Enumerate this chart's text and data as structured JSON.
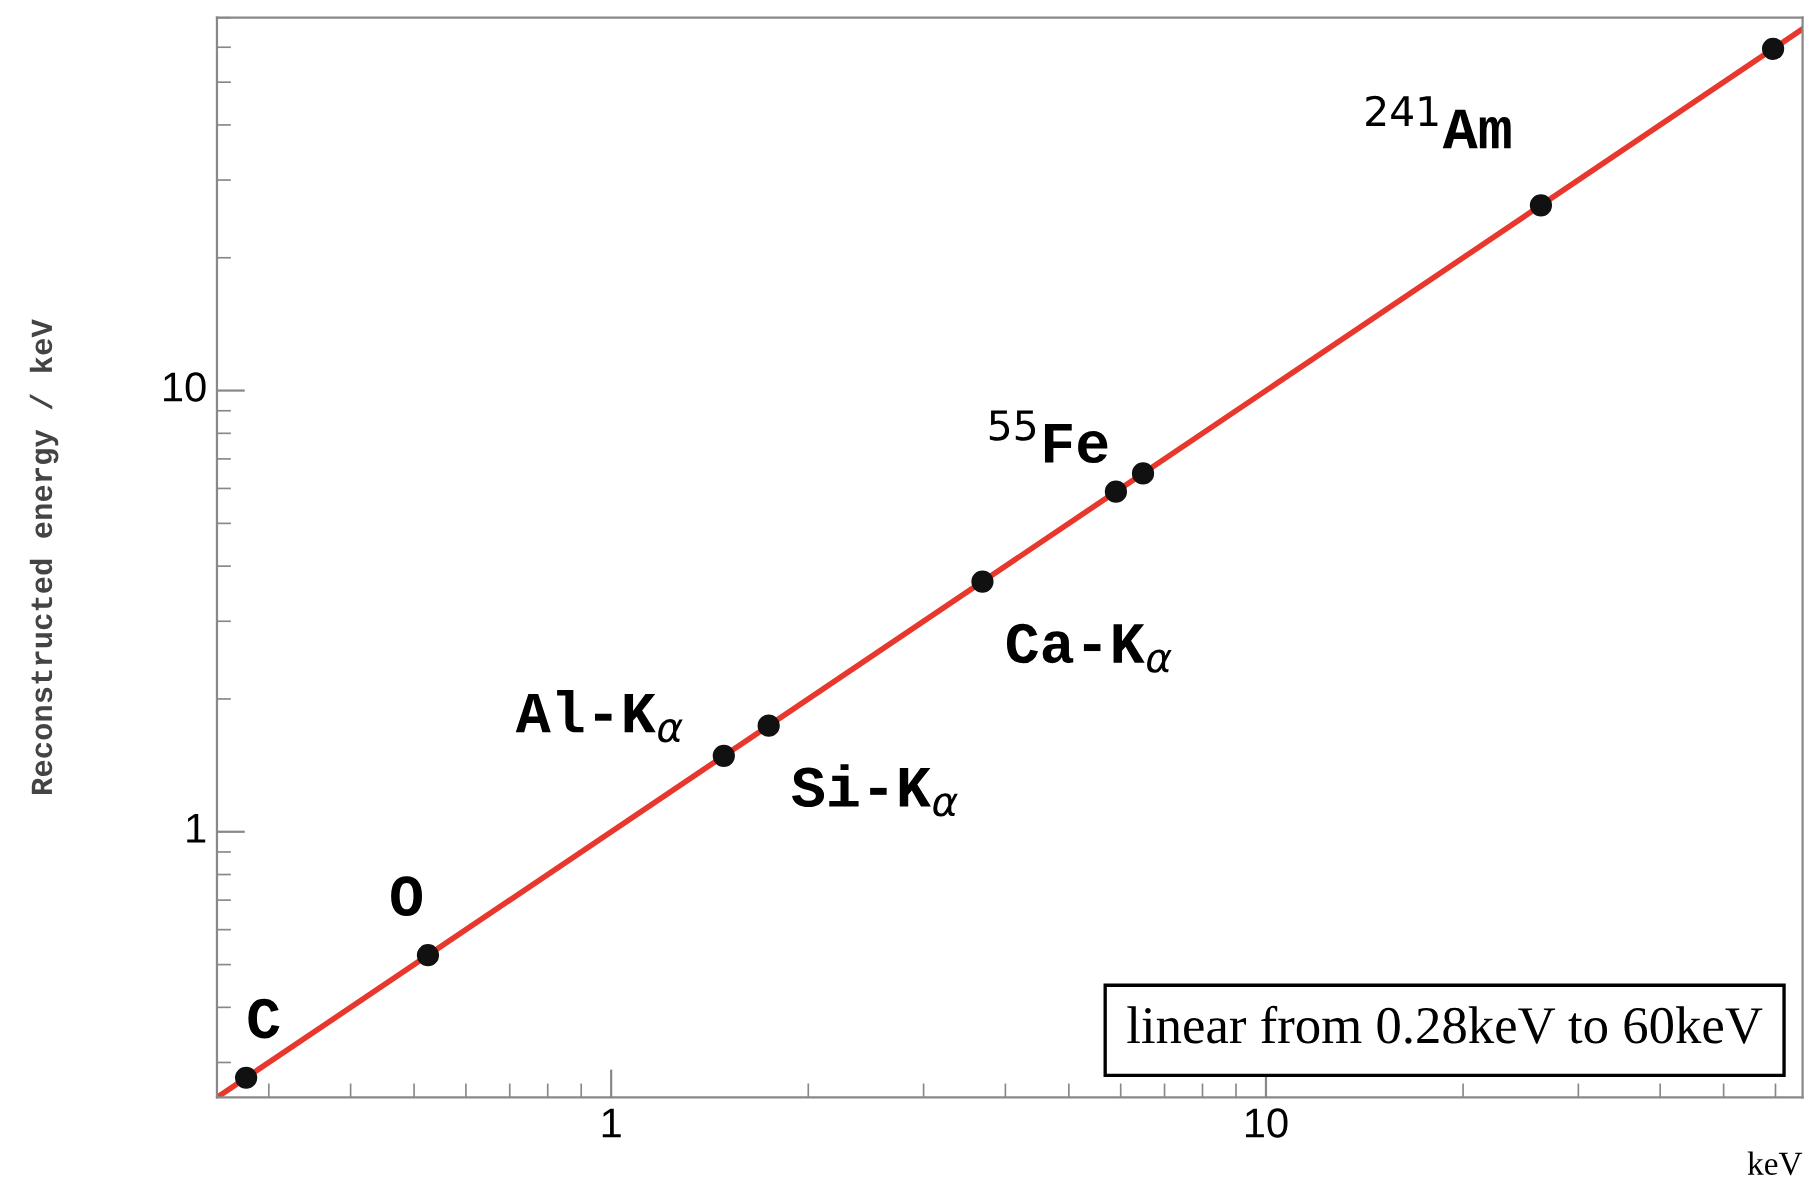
{
  "chart_data": {
    "type": "scatter",
    "xlabel": "keV",
    "ylabel": "Reconstructed energy / keV",
    "log": "xy",
    "grid": false,
    "legend": false,
    "marker": "circle",
    "xlim": [
      0.25,
      66
    ],
    "ylim": [
      0.25,
      70
    ],
    "xticks": [
      1,
      10
    ],
    "yticks": [
      1,
      10
    ],
    "series": [
      {
        "color": "#111111",
        "x": [
          0.277,
          0.525,
          1.486,
          1.74,
          3.69,
          5.9,
          6.49,
          26.3,
          59.5
        ],
        "values": [
          0.277,
          0.525,
          1.486,
          1.74,
          3.69,
          5.9,
          6.49,
          26.3,
          59.5
        ]
      },
      {
        "type": "line",
        "color": "#e8382d",
        "line_style": "solid",
        "marker": "none",
        "x": [
          0.25,
          66
        ],
        "values": [
          0.25,
          66
        ]
      }
    ],
    "annotations": [
      {
        "text": "C",
        "x": 0.277,
        "y": 0.277
      },
      {
        "text": "O",
        "x": 0.525,
        "y": 0.525
      },
      {
        "text": "Al-K$_{α}$",
        "x": 1.486,
        "y": 1.486
      },
      {
        "text": "Si-K$_{α}$",
        "x": 1.74,
        "y": 1.74
      },
      {
        "text": "Ca-K$_{α}$",
        "x": 3.69,
        "y": 3.69
      },
      {
        "text": "$^{55}$Fe",
        "x": 5.9,
        "y": 5.9
      },
      {
        "text": "$^{241}$Am",
        "x": 26.3,
        "y": 26.3
      },
      "linear from 0.28keV to 60keV"
    ]
  }
}
